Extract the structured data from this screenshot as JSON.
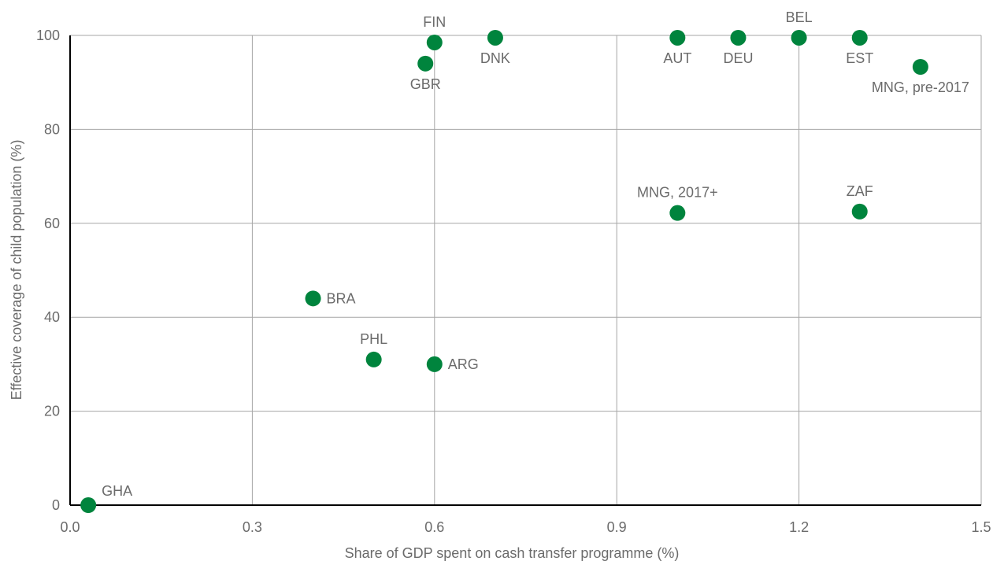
{
  "chart_data": {
    "type": "scatter",
    "title": "",
    "xlabel": "Share of GDP spent on cash transfer programme (%)",
    "ylabel": "Effective coverage of child population (%)",
    "xlim": [
      0,
      1.5
    ],
    "ylim": [
      0,
      100
    ],
    "xticks": [
      0.0,
      0.3,
      0.6,
      0.9,
      1.2,
      1.5
    ],
    "xtick_labels": [
      "0.0",
      "0.3",
      "0.6",
      "0.9",
      "1.2",
      "1.5"
    ],
    "yticks": [
      0,
      20,
      40,
      60,
      80,
      100
    ],
    "ytick_labels": [
      "0",
      "20",
      "40",
      "60",
      "80",
      "100"
    ],
    "grid": true,
    "marker_color": "#00843d",
    "points": [
      {
        "label": "GHA",
        "x": 0.03,
        "y": 0,
        "label_pos": "above-right"
      },
      {
        "label": "BRA",
        "x": 0.4,
        "y": 44,
        "label_pos": "right"
      },
      {
        "label": "PHL",
        "x": 0.5,
        "y": 31,
        "label_pos": "above"
      },
      {
        "label": "ARG",
        "x": 0.6,
        "y": 30,
        "label_pos": "right"
      },
      {
        "label": "GBR",
        "x": 0.585,
        "y": 94,
        "label_pos": "below"
      },
      {
        "label": "FIN",
        "x": 0.6,
        "y": 98.5,
        "label_pos": "above"
      },
      {
        "label": "DNK",
        "x": 0.7,
        "y": 99.5,
        "label_pos": "below"
      },
      {
        "label": "AUT",
        "x": 1.0,
        "y": 99.5,
        "label_pos": "below"
      },
      {
        "label": "DEU",
        "x": 1.1,
        "y": 99.5,
        "label_pos": "below"
      },
      {
        "label": "BEL",
        "x": 1.2,
        "y": 99.5,
        "label_pos": "above"
      },
      {
        "label": "EST",
        "x": 1.3,
        "y": 99.5,
        "label_pos": "below"
      },
      {
        "label": "MNG, pre-2017",
        "x": 1.4,
        "y": 93.3,
        "label_pos": "below"
      },
      {
        "label": "MNG, 2017+",
        "x": 1.0,
        "y": 62.2,
        "label_pos": "above"
      },
      {
        "label": "ZAF",
        "x": 1.3,
        "y": 62.5,
        "label_pos": "above"
      }
    ]
  }
}
